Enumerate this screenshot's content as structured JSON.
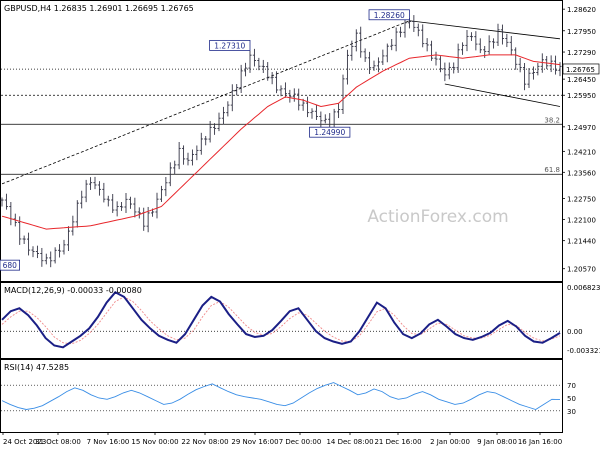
{
  "chart_data": [
    {
      "type": "candlestick",
      "symbol_line": "GBPUSD,H4  1.26835 1.26901 1.26695 1.26765",
      "x_tick_labels": [
        "24 Oct 2023",
        "31 Oct 08:00",
        "7 Nov 16:00",
        "15 Nov 00:00",
        "22 Nov 08:00",
        "29 Nov 16:00",
        "7 Dec 00:00",
        "14 Dec 08:00",
        "21 Dec 16:00",
        "2 Jan 00:00",
        "9 Jan 08:00",
        "16 Jan 16:00"
      ],
      "y_tick_labels": [
        "1.28620",
        "1.27950",
        "1.27290",
        "1.26450",
        "1.25950",
        "1.24970",
        "1.24210",
        "1.23560",
        "1.22750",
        "1.22100",
        "1.21440",
        "1.20570"
      ],
      "ylim": [
        1.2022,
        1.2878
      ],
      "last_price": 1.26765,
      "last_price_label": "1.26765",
      "watermark": "ActionForex.com",
      "close_path": [
        [
          0,
          1.227
        ],
        [
          2,
          1.222
        ],
        [
          4,
          1.216
        ],
        [
          6,
          1.212
        ],
        [
          8,
          1.21
        ],
        [
          10,
          1.208
        ],
        [
          12,
          1.2105
        ],
        [
          14,
          1.213
        ],
        [
          16,
          1.221
        ],
        [
          18,
          1.229
        ],
        [
          20,
          1.233
        ],
        [
          22,
          1.23
        ],
        [
          24,
          1.226
        ],
        [
          26,
          1.224
        ],
        [
          28,
          1.227
        ],
        [
          30,
          1.224
        ],
        [
          32,
          1.22
        ],
        [
          34,
          1.224
        ],
        [
          36,
          1.23
        ],
        [
          38,
          1.236
        ],
        [
          40,
          1.242
        ],
        [
          42,
          1.239
        ],
        [
          44,
          1.243
        ],
        [
          46,
          1.247
        ],
        [
          48,
          1.25
        ],
        [
          50,
          1.254
        ],
        [
          52,
          1.26
        ],
        [
          54,
          1.266
        ],
        [
          56,
          1.2715
        ],
        [
          58,
          1.269
        ],
        [
          60,
          1.266
        ],
        [
          62,
          1.262
        ],
        [
          64,
          1.26
        ],
        [
          66,
          1.259
        ],
        [
          68,
          1.256
        ],
        [
          70,
          1.254
        ],
        [
          72,
          1.252
        ],
        [
          74,
          1.2505
        ],
        [
          76,
          1.256
        ],
        [
          78,
          1.272
        ],
        [
          80,
          1.278
        ],
        [
          82,
          1.27
        ],
        [
          84,
          1.268
        ],
        [
          86,
          1.272
        ],
        [
          88,
          1.276
        ],
        [
          90,
          1.28
        ],
        [
          92,
          1.2826
        ],
        [
          94,
          1.279
        ],
        [
          96,
          1.274
        ],
        [
          98,
          1.27
        ],
        [
          100,
          1.266
        ],
        [
          102,
          1.269
        ],
        [
          104,
          1.276
        ],
        [
          106,
          1.278
        ],
        [
          108,
          1.273
        ],
        [
          110,
          1.275
        ],
        [
          112,
          1.279
        ],
        [
          114,
          1.276
        ],
        [
          116,
          1.27
        ],
        [
          118,
          1.264
        ],
        [
          120,
          1.267
        ],
        [
          122,
          1.27
        ],
        [
          124,
          1.269
        ],
        [
          126,
          1.2676
        ]
      ],
      "price_ma": [
        [
          0,
          1.222
        ],
        [
          10,
          1.218
        ],
        [
          20,
          1.219
        ],
        [
          30,
          1.222
        ],
        [
          36,
          1.225
        ],
        [
          42,
          1.233
        ],
        [
          48,
          1.241
        ],
        [
          54,
          1.249
        ],
        [
          60,
          1.256
        ],
        [
          64,
          1.259
        ],
        [
          68,
          1.258
        ],
        [
          72,
          1.256
        ],
        [
          76,
          1.257
        ],
        [
          80,
          1.262
        ],
        [
          86,
          1.267
        ],
        [
          92,
          1.271
        ],
        [
          98,
          1.272
        ],
        [
          104,
          1.271
        ],
        [
          110,
          1.272
        ],
        [
          116,
          1.272
        ],
        [
          120,
          1.27
        ],
        [
          126,
          1.269
        ]
      ],
      "annotations": [
        {
          "label": "1.28260",
          "x": 92,
          "y": 1.2826
        },
        {
          "label": "1.27310",
          "x": 56,
          "y": 1.2731
        },
        {
          "label": "1.24990",
          "x": 74,
          "y": 1.2499
        },
        {
          "label": "680",
          "x": 0,
          "y": 1.2068
        }
      ],
      "horizontal_levels": [
        {
          "value": 1.2676,
          "style": "dotted",
          "label": ""
        },
        {
          "value": 1.2595,
          "style": "dashed",
          "label": "1.25950"
        },
        {
          "value": 1.2505,
          "style": "solid",
          "label": "38.2"
        },
        {
          "value": 1.235,
          "style": "solid",
          "label": "61.8"
        }
      ],
      "trendlines": [
        {
          "from": [
            0,
            1.232
          ],
          "to": [
            92,
            1.2826
          ],
          "style": "dashed"
        },
        {
          "from": [
            92,
            1.2826
          ],
          "to": [
            126,
            1.277
          ],
          "style": "solid"
        },
        {
          "from": [
            100,
            1.263
          ],
          "to": [
            126,
            1.256
          ],
          "style": "solid"
        }
      ]
    },
    {
      "type": "line",
      "title": "MACD(12,26,9) -0.00033 -0.00080",
      "y_tick_labels": [
        "0.006823",
        "0.00",
        "-0.003321"
      ],
      "ylim": [
        -0.0045,
        0.0072
      ],
      "zero_line": 0.0,
      "series": [
        {
          "name": "MACD",
          "values": [
            0.002,
            0.0035,
            0.004,
            0.0028,
            0.001,
            -0.0012,
            -0.0025,
            -0.0028,
            -0.0018,
            -0.0008,
            0.0005,
            0.0025,
            0.005,
            0.0068,
            0.006,
            0.004,
            0.002,
            0.0005,
            -0.0008,
            -0.0015,
            -0.002,
            -0.0005,
            0.002,
            0.0045,
            0.006,
            0.0052,
            0.003,
            0.0012,
            -0.0005,
            -0.001,
            -0.0008,
            0.0002,
            0.0018,
            0.0035,
            0.004,
            0.002,
            0.0,
            -0.0012,
            -0.0018,
            -0.0022,
            -0.0018,
            0.0,
            0.0025,
            0.005,
            0.004,
            0.0015,
            -0.0005,
            -0.0012,
            -0.0004,
            0.0012,
            0.002,
            0.0008,
            -0.0005,
            -0.0012,
            -0.0015,
            -0.001,
            -0.0003,
            0.001,
            0.0018,
            0.0008,
            -0.0008,
            -0.0018,
            -0.002,
            -0.0012,
            -0.0003
          ]
        },
        {
          "name": "Signal",
          "values": [
            0.0012,
            0.0025,
            0.0035,
            0.0035,
            0.0024,
            0.0008,
            -0.001,
            -0.002,
            -0.0022,
            -0.0016,
            -0.0004,
            0.0012,
            0.0032,
            0.0052,
            0.006,
            0.0052,
            0.0036,
            0.0018,
            0.0004,
            -0.0008,
            -0.0015,
            -0.0012,
            0.0002,
            0.0025,
            0.0045,
            0.0052,
            0.0042,
            0.0026,
            0.001,
            -0.0002,
            -0.0007,
            -0.0004,
            0.0008,
            0.0022,
            0.0032,
            0.0028,
            0.0014,
            0.0,
            -0.001,
            -0.0017,
            -0.0018,
            -0.0008,
            0.0012,
            0.0034,
            0.004,
            0.0028,
            0.001,
            -0.0004,
            -0.0006,
            0.0004,
            0.0014,
            0.0012,
            0.0002,
            -0.0008,
            -0.0012,
            -0.0012,
            -0.0007,
            0.0003,
            0.0012,
            0.001,
            -0.0002,
            -0.0012,
            -0.0017,
            -0.0014,
            -0.0008
          ]
        }
      ]
    },
    {
      "type": "line",
      "title": "RSI(14) 47.5285",
      "y_tick_labels": [
        "70",
        "50",
        "30"
      ],
      "ylim": [
        0,
        100
      ],
      "levels": [
        70,
        30
      ],
      "series": [
        {
          "name": "RSI",
          "values": [
            46,
            40,
            35,
            32,
            34,
            38,
            45,
            52,
            60,
            66,
            62,
            55,
            50,
            48,
            52,
            58,
            62,
            58,
            52,
            46,
            40,
            42,
            48,
            56,
            63,
            68,
            72,
            66,
            60,
            55,
            52,
            50,
            48,
            44,
            40,
            38,
            42,
            50,
            58,
            65,
            70,
            74,
            68,
            62,
            55,
            58,
            64,
            60,
            52,
            48,
            50,
            56,
            60,
            55,
            48,
            44,
            40,
            42,
            48,
            55,
            60,
            58,
            52,
            46,
            40,
            36,
            32,
            40,
            48,
            47.5
          ]
        }
      ]
    }
  ]
}
